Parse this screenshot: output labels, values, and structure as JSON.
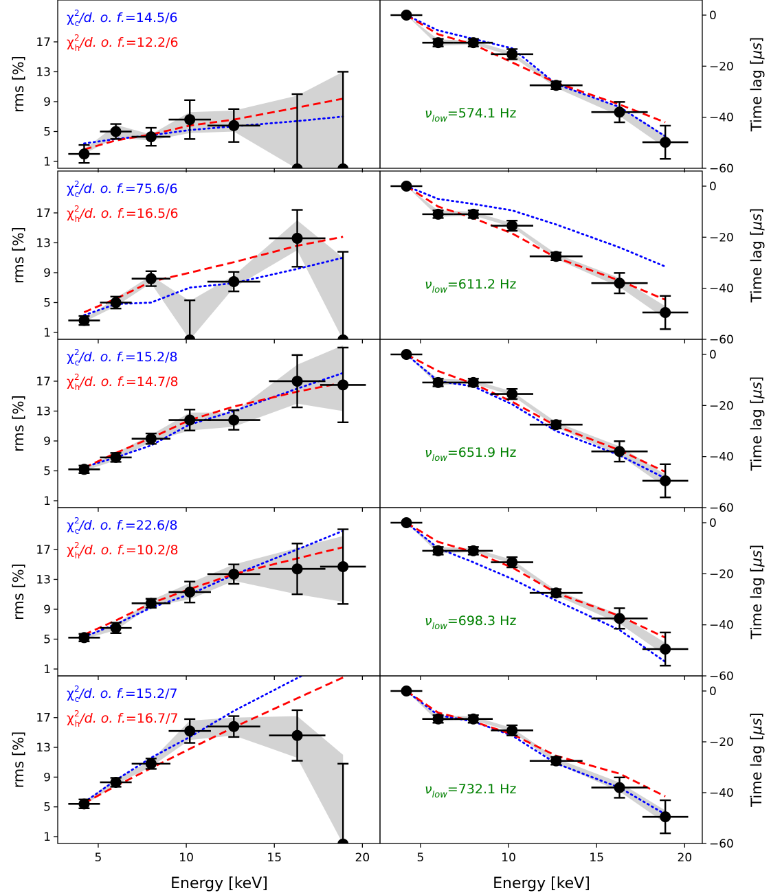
{
  "figure": {
    "left_ylabel": "rms [%]",
    "right_ylabel_main": "Time lag [",
    "right_ylabel_unit": "μs",
    "right_ylabel_close": "]",
    "xlabel": "Energy [keV]",
    "chi_prefix": "χ",
    "chi_suffix": "/d. o. f.",
    "nu_prefix": "ν",
    "nu_sub": "low",
    "nu_unit": " Hz"
  },
  "colors": {
    "comptonization_model": "#0000ff",
    "hot_flow_model": "#ff0000",
    "data_points": "#000000",
    "uncertainty_band": "#d3d3d3",
    "frequency_label": "#008000"
  },
  "chart_data": [
    {
      "type": "line",
      "panel": "rms-spectrum",
      "xlim": [
        2.7,
        21.0
      ],
      "ylim": [
        0,
        22.5
      ],
      "yticks": [
        1,
        5,
        9,
        13,
        17
      ],
      "xticks": [
        5,
        10,
        15,
        20
      ],
      "energy_keV": [
        4.2,
        6.0,
        8.0,
        10.2,
        12.7,
        16.3,
        18.9
      ],
      "energy_err_keV": [
        0.9,
        0.9,
        1.1,
        1.2,
        1.5,
        1.6,
        1.3
      ],
      "observations": [
        {
          "chi_c": "14.5/6",
          "chi_h": "12.2/6",
          "rms": [
            2.0,
            5.0,
            4.3,
            6.6,
            5.8,
            0.0,
            0.0
          ],
          "rms_err": [
            1.2,
            1.0,
            1.2,
            2.6,
            2.2,
            10.0,
            13.0
          ],
          "band_low": [
            2.0,
            4.2,
            3.8,
            4.8,
            5.0,
            0.0,
            0.0
          ],
          "band_high": [
            2.6,
            5.9,
            4.6,
            7.6,
            7.8,
            9.8,
            13.0
          ],
          "comptonization_model": [
            3.4,
            4.0,
            4.5,
            5.2,
            5.7,
            6.4,
            7.0
          ],
          "hot_flow_model": [
            2.6,
            3.8,
            4.6,
            5.8,
            6.6,
            8.2,
            9.4
          ]
        },
        {
          "chi_c": "75.6/6",
          "chi_h": "16.5/6",
          "rms": [
            2.6,
            5.0,
            8.2,
            0.0,
            7.8,
            13.6,
            0.0
          ],
          "rms_err": [
            0.6,
            0.8,
            1.0,
            5.3,
            1.3,
            3.8,
            11.8
          ],
          "band_low": [
            2.4,
            4.5,
            7.6,
            0.0,
            7.0,
            12.0,
            0.0
          ],
          "band_high": [
            2.8,
            5.6,
            8.6,
            5.2,
            8.6,
            16.0,
            11.0
          ],
          "comptonization_model": [
            3.3,
            4.8,
            5.0,
            7.0,
            7.6,
            9.5,
            11.0
          ],
          "hot_flow_model": [
            3.7,
            5.5,
            7.8,
            9.0,
            10.4,
            12.6,
            13.8
          ]
        },
        {
          "chi_c": "15.2/8",
          "chi_h": "14.7/8",
          "rms": [
            5.2,
            6.8,
            9.3,
            11.8,
            11.8,
            17.0,
            16.5
          ],
          "rms_err": [
            0.5,
            0.6,
            0.7,
            1.4,
            1.3,
            3.5,
            5.0
          ],
          "band_low": [
            5.0,
            6.4,
            8.9,
            10.4,
            10.9,
            14.0,
            13.0
          ],
          "band_high": [
            5.4,
            7.4,
            9.8,
            12.8,
            12.8,
            19.2,
            21.8
          ],
          "comptonization_model": [
            5.5,
            6.8,
            8.4,
            11.2,
            13.0,
            16.0,
            18.1
          ],
          "hot_flow_model": [
            5.4,
            7.4,
            9.4,
            11.8,
            13.6,
            15.6,
            16.8
          ]
        },
        {
          "chi_c": "22.6/8",
          "chi_h": "10.2/8",
          "rms": [
            5.2,
            6.5,
            9.8,
            11.3,
            13.7,
            14.4,
            14.7
          ],
          "rms_err": [
            0.5,
            0.7,
            0.6,
            1.4,
            1.3,
            3.4,
            5.0
          ],
          "band_low": [
            5.0,
            6.2,
            9.4,
            10.3,
            12.8,
            11.0,
            10.0
          ],
          "band_high": [
            5.5,
            7.0,
            10.2,
            12.5,
            15.0,
            17.2,
            18.8
          ],
          "comptonization_model": [
            5.3,
            7.0,
            9.2,
            11.0,
            13.6,
            17.0,
            19.5
          ],
          "hot_flow_model": [
            5.6,
            7.5,
            9.8,
            11.7,
            13.7,
            15.8,
            17.3
          ]
        },
        {
          "chi_c": "15.2/7",
          "chi_h": "16.7/7",
          "rms": [
            5.4,
            8.3,
            10.8,
            15.2,
            15.8,
            14.6,
            0.0
          ],
          "rms_err": [
            0.6,
            0.6,
            0.7,
            1.6,
            1.4,
            3.4,
            10.8
          ],
          "band_low": [
            5.2,
            8.0,
            10.4,
            14.0,
            14.6,
            11.6,
            0.0
          ],
          "band_high": [
            5.7,
            8.8,
            11.2,
            16.6,
            17.0,
            17.2,
            12.0
          ],
          "comptonization_model": [
            5.6,
            8.6,
            11.6,
            14.4,
            17.9,
            22.3,
            25.5
          ],
          "hot_flow_model": [
            5.5,
            7.8,
            10.2,
            12.8,
            15.7,
            19.6,
            22.4
          ]
        }
      ]
    },
    {
      "type": "line",
      "panel": "time-lag",
      "xlim": [
        2.7,
        21.0
      ],
      "ylim": [
        -60,
        5
      ],
      "yticks": [
        0,
        -20,
        -40,
        -60
      ],
      "xticks": [
        5,
        10,
        15,
        20
      ],
      "energy_keV": [
        4.2,
        6.0,
        8.0,
        10.2,
        12.7,
        16.3,
        18.9
      ],
      "energy_err_keV": [
        0.9,
        0.9,
        1.1,
        1.2,
        1.5,
        1.6,
        1.3
      ],
      "observations": [
        {
          "nu_low": "574.1",
          "lag": [
            0.0,
            -10.8,
            -10.8,
            -15.3,
            -27.5,
            -38.0,
            -49.8
          ],
          "lag_err": [
            0.0,
            1.5,
            1.5,
            2.0,
            1.5,
            4.0,
            6.5
          ],
          "band_low": [
            0.0,
            -12.0,
            -11.5,
            -16.0,
            -28.5,
            -39.5,
            -52.0
          ],
          "band_high": [
            0.0,
            -9.5,
            -10.0,
            -14.5,
            -26.5,
            -36.0,
            -47.0
          ],
          "comptonization_model": [
            0.0,
            -6.0,
            -9.3,
            -13.0,
            -27.0,
            -36.0,
            -47.5
          ],
          "hot_flow_model": [
            0.0,
            -7.5,
            -11.5,
            -18.5,
            -26.5,
            -35.0,
            -42.0
          ]
        },
        {
          "nu_low": "611.2",
          "lag": [
            0.0,
            -11.0,
            -11.0,
            -15.5,
            -27.5,
            -38.0,
            -49.5
          ],
          "lag_err": [
            0.0,
            1.5,
            1.5,
            2.0,
            1.5,
            4.0,
            6.5
          ],
          "band_low": [
            0.0,
            -12.0,
            -11.5,
            -16.0,
            -28.5,
            -39.5,
            -52.0
          ],
          "band_high": [
            0.0,
            -9.5,
            -10.0,
            -14.5,
            -26.5,
            -36.0,
            -47.0
          ],
          "comptonization_model": [
            0.0,
            -5.0,
            -7.0,
            -9.5,
            -15.0,
            -24.0,
            -31.5
          ],
          "hot_flow_model": [
            0.0,
            -8.0,
            -12.5,
            -18.5,
            -28.0,
            -37.0,
            -44.5
          ]
        },
        {
          "nu_low": "651.9",
          "lag": [
            0.0,
            -11.0,
            -11.0,
            -15.5,
            -27.5,
            -38.0,
            -49.5
          ],
          "lag_err": [
            0.0,
            1.5,
            1.5,
            2.0,
            1.5,
            4.0,
            6.5
          ],
          "band_low": [
            0.0,
            -12.0,
            -11.5,
            -16.0,
            -28.5,
            -39.5,
            -52.0
          ],
          "band_high": [
            0.0,
            -9.5,
            -10.0,
            -14.5,
            -26.5,
            -36.0,
            -47.0
          ],
          "comptonization_model": [
            0.0,
            -10.5,
            -12.5,
            -19.5,
            -30.0,
            -39.5,
            -48.5
          ],
          "hot_flow_model": [
            0.0,
            -6.5,
            -11.5,
            -18.5,
            -28.0,
            -37.5,
            -46.0
          ]
        },
        {
          "nu_low": "698.3",
          "lag": [
            0.0,
            -11.0,
            -11.0,
            -15.5,
            -27.5,
            -37.5,
            -49.5
          ],
          "lag_err": [
            0.0,
            1.5,
            1.5,
            2.0,
            1.5,
            4.0,
            6.5
          ],
          "band_low": [
            0.0,
            -12.0,
            -11.5,
            -16.0,
            -28.5,
            -39.5,
            -52.0
          ],
          "band_high": [
            0.0,
            -9.5,
            -10.0,
            -14.5,
            -26.5,
            -36.0,
            -47.0
          ],
          "comptonization_model": [
            0.0,
            -10.0,
            -15.5,
            -22.0,
            -30.5,
            -42.0,
            -54.5
          ],
          "hot_flow_model": [
            0.0,
            -7.5,
            -11.5,
            -17.5,
            -27.5,
            -36.5,
            -45.0
          ]
        },
        {
          "nu_low": "732.1",
          "lag": [
            0.0,
            -11.0,
            -11.0,
            -15.5,
            -27.5,
            -38.0,
            -49.5
          ],
          "lag_err": [
            0.0,
            1.5,
            1.5,
            2.0,
            1.5,
            4.0,
            6.5
          ],
          "band_low": [
            0.0,
            -12.0,
            -11.5,
            -16.0,
            -28.5,
            -39.5,
            -52.0
          ],
          "band_high": [
            0.0,
            -9.5,
            -10.0,
            -14.5,
            -26.5,
            -36.0,
            -47.0
          ],
          "comptonization_model": [
            0.0,
            -9.5,
            -12.0,
            -17.5,
            -28.5,
            -38.0,
            -48.5
          ],
          "hot_flow_model": [
            0.0,
            -8.5,
            -12.0,
            -17.0,
            -25.5,
            -32.5,
            -41.5
          ]
        }
      ]
    }
  ]
}
